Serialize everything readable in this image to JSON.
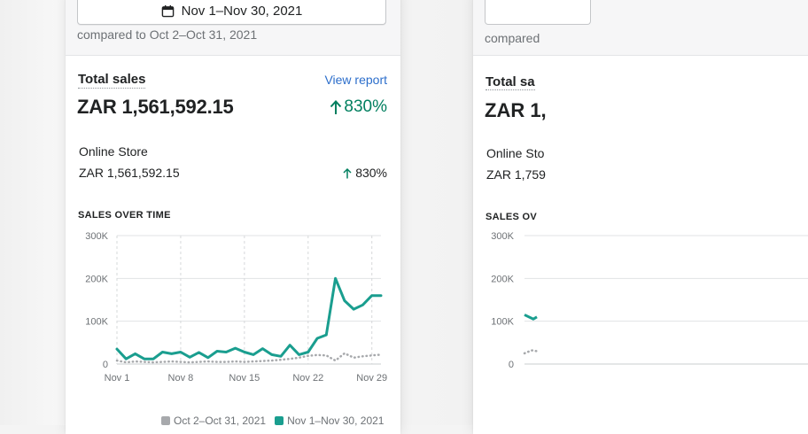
{
  "date_range": {
    "label": "Nov 1–Nov 30, 2021",
    "icon": "calendar-icon"
  },
  "comparison_text": "compared to Oct 2–Oct 31, 2021",
  "total_sales": {
    "title": "Total sales",
    "view_report": "View report",
    "value": "ZAR 1,561,592.15",
    "change": "830%",
    "change_color": "#007f5f",
    "change_icon": "arrow-up-icon"
  },
  "channels": [
    {
      "name": "Online Store",
      "value": "ZAR 1,561,592.15",
      "change": "830%",
      "change_icon": "arrow-up-icon"
    }
  ],
  "chart_heading": "SALES OVER TIME",
  "chart_data": {
    "type": "line",
    "title": "SALES OVER TIME",
    "x": [
      1,
      2,
      3,
      4,
      5,
      6,
      7,
      8,
      9,
      10,
      11,
      12,
      13,
      14,
      15,
      16,
      17,
      18,
      19,
      20,
      21,
      22,
      23,
      24,
      25,
      26,
      27,
      28,
      29,
      30
    ],
    "x_tick_labels": [
      "Nov 1",
      "Nov 8",
      "Nov 15",
      "Nov 22",
      "Nov 29"
    ],
    "x_tick_positions": [
      1,
      8,
      15,
      22,
      29
    ],
    "y_tick_labels": [
      "0",
      "100K",
      "200K",
      "300K"
    ],
    "ylim": [
      0,
      300000
    ],
    "grid": true,
    "legend_position": "bottom",
    "series": [
      {
        "name": "Oct 2–Oct 31, 2021",
        "color": "#a7a9ac",
        "style": "dotted",
        "values": [
          8000,
          4000,
          6000,
          5000,
          4000,
          5000,
          6000,
          5000,
          4000,
          5000,
          6000,
          5000,
          5000,
          6000,
          5000,
          6000,
          7000,
          8000,
          10000,
          12000,
          15000,
          19000,
          21000,
          20000,
          8000,
          25000,
          15000,
          18000,
          20000,
          22000
        ]
      },
      {
        "name": "Nov 1–Nov 30, 2021",
        "color": "#1a9e8f",
        "style": "solid",
        "values": [
          35000,
          12000,
          24000,
          12000,
          12000,
          28000,
          24000,
          28000,
          16000,
          27000,
          15000,
          30000,
          28000,
          37000,
          28000,
          22000,
          36000,
          22000,
          18000,
          44000,
          22000,
          28000,
          60000,
          68000,
          200000,
          148000,
          128000,
          138000,
          160000,
          160000
        ]
      }
    ]
  },
  "right_card": {
    "compare_text": "compared",
    "title": "Total sa",
    "total": "ZAR 1,",
    "store": "Online Sto",
    "store_value": "ZAR 1,759",
    "heading": "SALES OV",
    "y_tick_labels": [
      "300K",
      "200K",
      "100K",
      "0"
    ]
  }
}
